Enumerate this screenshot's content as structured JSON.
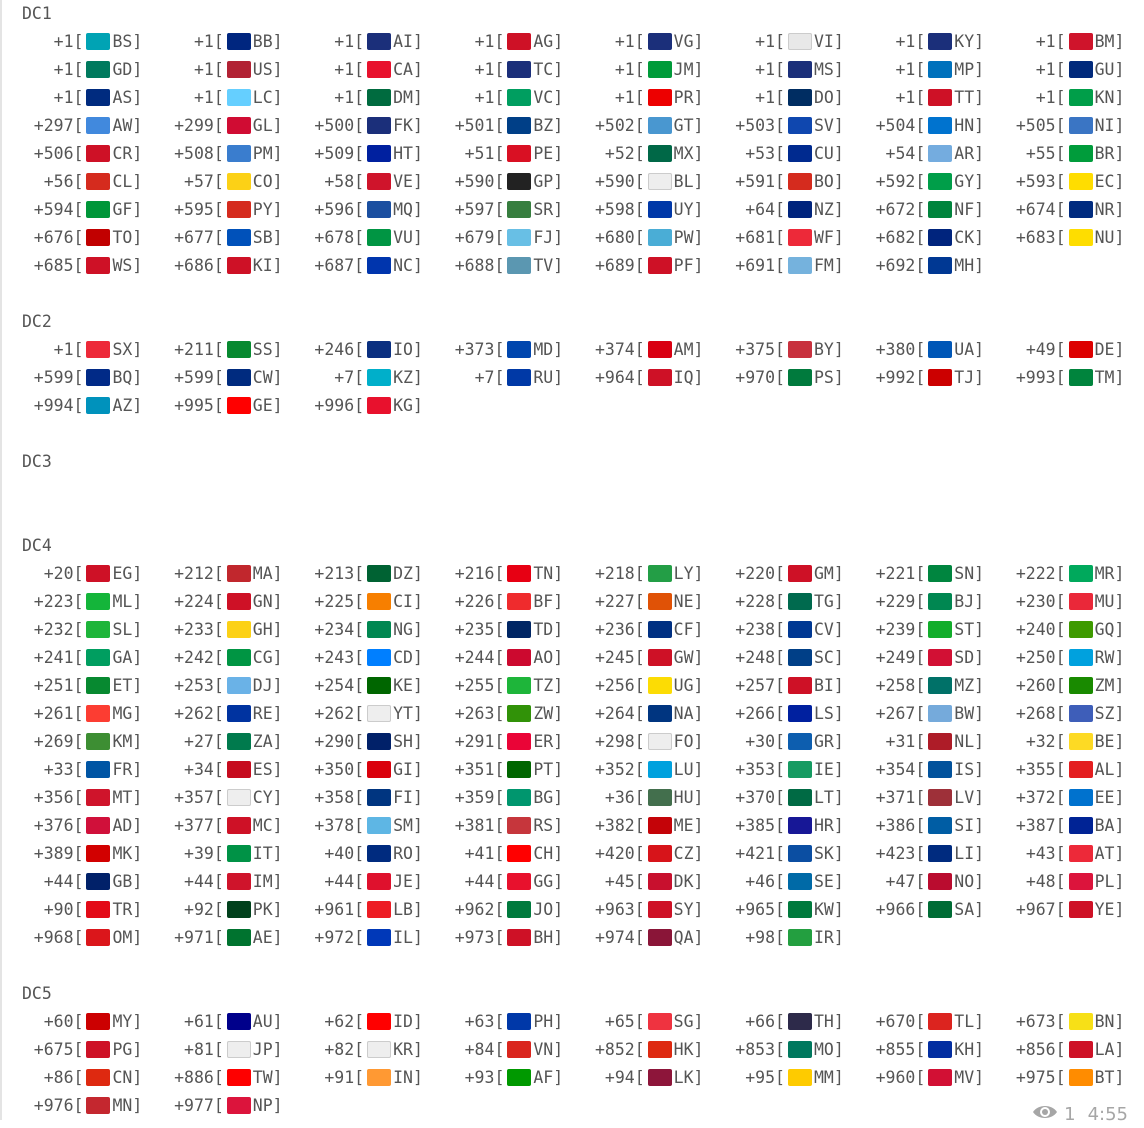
{
  "sections": [
    {
      "title": "DC1",
      "rows": [
        [
          [
            "+1",
            "BS"
          ],
          [
            "+1",
            "BB"
          ],
          [
            "+1",
            "AI"
          ],
          [
            "+1",
            "AG"
          ],
          [
            "+1",
            "VG"
          ],
          [
            "+1",
            "VI"
          ],
          [
            "+1",
            "KY"
          ],
          [
            "+1",
            "BM"
          ]
        ],
        [
          [
            "+1",
            "GD"
          ],
          [
            "+1",
            "US"
          ],
          [
            "+1",
            "CA"
          ],
          [
            "+1",
            "TC"
          ],
          [
            "+1",
            "JM"
          ],
          [
            "+1",
            "MS"
          ],
          [
            "+1",
            "MP"
          ],
          [
            "+1",
            "GU"
          ]
        ],
        [
          [
            "+1",
            "AS"
          ],
          [
            "+1",
            "LC"
          ],
          [
            "+1",
            "DM"
          ],
          [
            "+1",
            "VC"
          ],
          [
            "+1",
            "PR"
          ],
          [
            "+1",
            "DO"
          ],
          [
            "+1",
            "TT"
          ],
          [
            "+1",
            "KN"
          ]
        ],
        [
          [
            "+297",
            "AW"
          ],
          [
            "+299",
            "GL"
          ],
          [
            "+500",
            "FK"
          ],
          [
            "+501",
            "BZ"
          ],
          [
            "+502",
            "GT"
          ],
          [
            "+503",
            "SV"
          ],
          [
            "+504",
            "HN"
          ],
          [
            "+505",
            "NI"
          ]
        ],
        [
          [
            "+506",
            "CR"
          ],
          [
            "+508",
            "PM"
          ],
          [
            "+509",
            "HT"
          ],
          [
            "+51",
            "PE"
          ],
          [
            "+52",
            "MX"
          ],
          [
            "+53",
            "CU"
          ],
          [
            "+54",
            "AR"
          ],
          [
            "+55",
            "BR"
          ]
        ],
        [
          [
            "+56",
            "CL"
          ],
          [
            "+57",
            "CO"
          ],
          [
            "+58",
            "VE"
          ],
          [
            "+590",
            "GP"
          ],
          [
            "+590",
            "BL"
          ],
          [
            "+591",
            "BO"
          ],
          [
            "+592",
            "GY"
          ],
          [
            "+593",
            "EC"
          ]
        ],
        [
          [
            "+594",
            "GF"
          ],
          [
            "+595",
            "PY"
          ],
          [
            "+596",
            "MQ"
          ],
          [
            "+597",
            "SR"
          ],
          [
            "+598",
            "UY"
          ],
          [
            "+64",
            "NZ"
          ],
          [
            "+672",
            "NF"
          ],
          [
            "+674",
            "NR"
          ]
        ],
        [
          [
            "+676",
            "TO"
          ],
          [
            "+677",
            "SB"
          ],
          [
            "+678",
            "VU"
          ],
          [
            "+679",
            "FJ"
          ],
          [
            "+680",
            "PW"
          ],
          [
            "+681",
            "WF"
          ],
          [
            "+682",
            "CK"
          ],
          [
            "+683",
            "NU"
          ]
        ],
        [
          [
            "+685",
            "WS"
          ],
          [
            "+686",
            "KI"
          ],
          [
            "+687",
            "NC"
          ],
          [
            "+688",
            "TV"
          ],
          [
            "+689",
            "PF"
          ],
          [
            "+691",
            "FM"
          ],
          [
            "+692",
            "MH"
          ]
        ]
      ]
    },
    {
      "title": "DC2",
      "rows": [
        [
          [
            "+1",
            "SX"
          ],
          [
            "+211",
            "SS"
          ],
          [
            "+246",
            "IO"
          ],
          [
            "+373",
            "MD"
          ],
          [
            "+374",
            "AM"
          ],
          [
            "+375",
            "BY"
          ],
          [
            "+380",
            "UA"
          ],
          [
            "+49",
            "DE"
          ]
        ],
        [
          [
            "+599",
            "BQ"
          ],
          [
            "+599",
            "CW"
          ],
          [
            "+7",
            "KZ"
          ],
          [
            "+7",
            "RU"
          ],
          [
            "+964",
            "IQ"
          ],
          [
            "+970",
            "PS"
          ],
          [
            "+992",
            "TJ"
          ],
          [
            "+993",
            "TM"
          ]
        ],
        [
          [
            "+994",
            "AZ"
          ],
          [
            "+995",
            "GE"
          ],
          [
            "+996",
            "KG"
          ]
        ]
      ]
    },
    {
      "title": "DC3",
      "rows": [
        []
      ]
    },
    {
      "title": "DC4",
      "rows": [
        [
          [
            "+20",
            "EG"
          ],
          [
            "+212",
            "MA"
          ],
          [
            "+213",
            "DZ"
          ],
          [
            "+216",
            "TN"
          ],
          [
            "+218",
            "LY"
          ],
          [
            "+220",
            "GM"
          ],
          [
            "+221",
            "SN"
          ],
          [
            "+222",
            "MR"
          ]
        ],
        [
          [
            "+223",
            "ML"
          ],
          [
            "+224",
            "GN"
          ],
          [
            "+225",
            "CI"
          ],
          [
            "+226",
            "BF"
          ],
          [
            "+227",
            "NE"
          ],
          [
            "+228",
            "TG"
          ],
          [
            "+229",
            "BJ"
          ],
          [
            "+230",
            "MU"
          ]
        ],
        [
          [
            "+232",
            "SL"
          ],
          [
            "+233",
            "GH"
          ],
          [
            "+234",
            "NG"
          ],
          [
            "+235",
            "TD"
          ],
          [
            "+236",
            "CF"
          ],
          [
            "+238",
            "CV"
          ],
          [
            "+239",
            "ST"
          ],
          [
            "+240",
            "GQ"
          ]
        ],
        [
          [
            "+241",
            "GA"
          ],
          [
            "+242",
            "CG"
          ],
          [
            "+243",
            "CD"
          ],
          [
            "+244",
            "AO"
          ],
          [
            "+245",
            "GW"
          ],
          [
            "+248",
            "SC"
          ],
          [
            "+249",
            "SD"
          ],
          [
            "+250",
            "RW"
          ]
        ],
        [
          [
            "+251",
            "ET"
          ],
          [
            "+253",
            "DJ"
          ],
          [
            "+254",
            "KE"
          ],
          [
            "+255",
            "TZ"
          ],
          [
            "+256",
            "UG"
          ],
          [
            "+257",
            "BI"
          ],
          [
            "+258",
            "MZ"
          ],
          [
            "+260",
            "ZM"
          ]
        ],
        [
          [
            "+261",
            "MG"
          ],
          [
            "+262",
            "RE"
          ],
          [
            "+262",
            "YT"
          ],
          [
            "+263",
            "ZW"
          ],
          [
            "+264",
            "NA"
          ],
          [
            "+266",
            "LS"
          ],
          [
            "+267",
            "BW"
          ],
          [
            "+268",
            "SZ"
          ]
        ],
        [
          [
            "+269",
            "KM"
          ],
          [
            "+27",
            "ZA"
          ],
          [
            "+290",
            "SH"
          ],
          [
            "+291",
            "ER"
          ],
          [
            "+298",
            "FO"
          ],
          [
            "+30",
            "GR"
          ],
          [
            "+31",
            "NL"
          ],
          [
            "+32",
            "BE"
          ]
        ],
        [
          [
            "+33",
            "FR"
          ],
          [
            "+34",
            "ES"
          ],
          [
            "+350",
            "GI"
          ],
          [
            "+351",
            "PT"
          ],
          [
            "+352",
            "LU"
          ],
          [
            "+353",
            "IE"
          ],
          [
            "+354",
            "IS"
          ],
          [
            "+355",
            "AL"
          ]
        ],
        [
          [
            "+356",
            "MT"
          ],
          [
            "+357",
            "CY"
          ],
          [
            "+358",
            "FI"
          ],
          [
            "+359",
            "BG"
          ],
          [
            "+36",
            "HU"
          ],
          [
            "+370",
            "LT"
          ],
          [
            "+371",
            "LV"
          ],
          [
            "+372",
            "EE"
          ]
        ],
        [
          [
            "+376",
            "AD"
          ],
          [
            "+377",
            "MC"
          ],
          [
            "+378",
            "SM"
          ],
          [
            "+381",
            "RS"
          ],
          [
            "+382",
            "ME"
          ],
          [
            "+385",
            "HR"
          ],
          [
            "+386",
            "SI"
          ],
          [
            "+387",
            "BA"
          ]
        ],
        [
          [
            "+389",
            "MK"
          ],
          [
            "+39",
            "IT"
          ],
          [
            "+40",
            "RO"
          ],
          [
            "+41",
            "CH"
          ],
          [
            "+420",
            "CZ"
          ],
          [
            "+421",
            "SK"
          ],
          [
            "+423",
            "LI"
          ],
          [
            "+43",
            "AT"
          ]
        ],
        [
          [
            "+44",
            "GB"
          ],
          [
            "+44",
            "IM"
          ],
          [
            "+44",
            "JE"
          ],
          [
            "+44",
            "GG"
          ],
          [
            "+45",
            "DK"
          ],
          [
            "+46",
            "SE"
          ],
          [
            "+47",
            "NO"
          ],
          [
            "+48",
            "PL"
          ]
        ],
        [
          [
            "+90",
            "TR"
          ],
          [
            "+92",
            "PK"
          ],
          [
            "+961",
            "LB"
          ],
          [
            "+962",
            "JO"
          ],
          [
            "+963",
            "SY"
          ],
          [
            "+965",
            "KW"
          ],
          [
            "+966",
            "SA"
          ],
          [
            "+967",
            "YE"
          ]
        ],
        [
          [
            "+968",
            "OM"
          ],
          [
            "+971",
            "AE"
          ],
          [
            "+972",
            "IL"
          ],
          [
            "+973",
            "BH"
          ],
          [
            "+974",
            "QA"
          ],
          [
            "+98",
            "IR"
          ]
        ]
      ]
    },
    {
      "title": "DC5",
      "rows": [
        [
          [
            "+60",
            "MY"
          ],
          [
            "+61",
            "AU"
          ],
          [
            "+62",
            "ID"
          ],
          [
            "+63",
            "PH"
          ],
          [
            "+65",
            "SG"
          ],
          [
            "+66",
            "TH"
          ],
          [
            "+670",
            "TL"
          ],
          [
            "+673",
            "BN"
          ]
        ],
        [
          [
            "+675",
            "PG"
          ],
          [
            "+81",
            "JP"
          ],
          [
            "+82",
            "KR"
          ],
          [
            "+84",
            "VN"
          ],
          [
            "+852",
            "HK"
          ],
          [
            "+853",
            "MO"
          ],
          [
            "+855",
            "KH"
          ],
          [
            "+856",
            "LA"
          ]
        ],
        [
          [
            "+86",
            "CN"
          ],
          [
            "+886",
            "TW"
          ],
          [
            "+91",
            "IN"
          ],
          [
            "+93",
            "AF"
          ],
          [
            "+94",
            "LK"
          ],
          [
            "+95",
            "MM"
          ],
          [
            "+960",
            "MV"
          ],
          [
            "+975",
            "BT"
          ]
        ],
        [
          [
            "+976",
            "MN"
          ],
          [
            "+977",
            "NP"
          ]
        ]
      ]
    }
  ],
  "flag_colors": {
    "BS": "#00a3b4",
    "BB": "#00267f",
    "AI": "#1b2f7a",
    "AG": "#ce1126",
    "VG": "#1b2f7a",
    "VI": "#e8e8e8",
    "KY": "#1b2f7a",
    "BM": "#cf142b",
    "GD": "#007a5e",
    "US": "#b22234",
    "CA": "#e8112d",
    "TC": "#1b2f7a",
    "JM": "#009b3a",
    "MS": "#1b2f7a",
    "MP": "#0071bc",
    "GU": "#00297b",
    "AS": "#002b7f",
    "LC": "#65cfff",
    "DM": "#006b3f",
    "VC": "#009e60",
    "PR": "#ed0000",
    "DO": "#002d62",
    "TT": "#ce1126",
    "KN": "#009e49",
    "AW": "#4189dd",
    "GL": "#d00c33",
    "FK": "#1b2f7a",
    "BZ": "#003f87",
    "GT": "#4997d0",
    "SV": "#0f47af",
    "HN": "#0073cf",
    "NI": "#3a75c4",
    "CR": "#ce1126",
    "PM": "#3a7dce",
    "HT": "#00209f",
    "PE": "#d91023",
    "MX": "#006847",
    "CU": "#002a8f",
    "AR": "#74acdf",
    "BR": "#009c3b",
    "CL": "#d52b1e",
    "CO": "#fcd116",
    "VE": "#cf142b",
    "GP": "#222222",
    "BL": "#eeeeee",
    "BO": "#d52b1e",
    "GY": "#009e49",
    "EC": "#ffdd00",
    "GF": "#009639",
    "PY": "#d52b1e",
    "MQ": "#1b4fa0",
    "SR": "#377e3f",
    "UY": "#0038a8",
    "NZ": "#00247d",
    "NF": "#00843d",
    "NR": "#002b7f",
    "TO": "#c10000",
    "SB": "#0051ba",
    "VU": "#009543",
    "FJ": "#68bfe5",
    "PW": "#4aadd6",
    "WF": "#ed2939",
    "CK": "#00247d",
    "NU": "#fedd00",
    "WS": "#ce1126",
    "KI": "#ce1126",
    "NC": "#0035ad",
    "TV": "#5b97b1",
    "PF": "#ce1126",
    "FM": "#75b2dd",
    "MH": "#003893",
    "SX": "#ed2939",
    "SS": "#078930",
    "IO": "#0a2f80",
    "MD": "#0046ae",
    "AM": "#d90012",
    "BY": "#c8313e",
    "UA": "#0057b7",
    "DE": "#dd0000",
    "BQ": "#012a87",
    "CW": "#002b7f",
    "KZ": "#00afca",
    "RU": "#0039a6",
    "IQ": "#ce1126",
    "PS": "#007a3d",
    "TJ": "#cc0000",
    "TM": "#00843d",
    "AZ": "#0092bc",
    "GE": "#ff0000",
    "KG": "#e8112d",
    "EG": "#ce1126",
    "MA": "#c1272d",
    "DZ": "#006233",
    "TN": "#e70013",
    "LY": "#239e46",
    "GM": "#ce1126",
    "SN": "#00853f",
    "MR": "#00a95c",
    "ML": "#14b53a",
    "GN": "#ce1126",
    "CI": "#f77f00",
    "BF": "#ef2b2d",
    "NE": "#e05206",
    "TG": "#006a4e",
    "BJ": "#008751",
    "MU": "#ea2839",
    "SL": "#1eb53a",
    "GH": "#fcd116",
    "NG": "#008751",
    "TD": "#002664",
    "CF": "#003082",
    "CV": "#003893",
    "ST": "#12ad2b",
    "GQ": "#3e9a00",
    "GA": "#009e60",
    "CG": "#009543",
    "CD": "#007fff",
    "AO": "#cc092f",
    "GW": "#ce1126",
    "SC": "#003f87",
    "SD": "#d21034",
    "RW": "#00a1de",
    "ET": "#078930",
    "DJ": "#6ab2e7",
    "KE": "#006600",
    "TZ": "#1eb53a",
    "UG": "#fcdc04",
    "BI": "#ce1126",
    "MZ": "#007168",
    "ZM": "#198a00",
    "MG": "#fc3d32",
    "RE": "#0033a0",
    "YT": "#eeeeee",
    "ZW": "#319208",
    "NA": "#003580",
    "LS": "#00209f",
    "BW": "#75aadb",
    "SZ": "#3e5eb9",
    "KM": "#3d8e33",
    "ZA": "#007a4d",
    "SH": "#012169",
    "ER": "#ea0437",
    "FO": "#eeeeee",
    "GR": "#0d5eaf",
    "NL": "#ae1c28",
    "BE": "#fdda24",
    "FR": "#0055a4",
    "ES": "#c60b1e",
    "GI": "#da000c",
    "PT": "#006600",
    "LU": "#00a1de",
    "IE": "#169b62",
    "IS": "#02529c",
    "AL": "#e41e20",
    "MT": "#cf142b",
    "CY": "#eeeeee",
    "FI": "#003580",
    "BG": "#00966e",
    "HU": "#436f4d",
    "LT": "#006a44",
    "LV": "#9e3039",
    "EE": "#0072ce",
    "AD": "#d0103a",
    "MC": "#ce1126",
    "SM": "#5eb6e4",
    "RS": "#c6363c",
    "ME": "#c40308",
    "HR": "#171796",
    "SI": "#005da4",
    "BA": "#002395",
    "MK": "#d20000",
    "IT": "#009246",
    "RO": "#002b7f",
    "CH": "#ff0000",
    "CZ": "#d7141a",
    "SK": "#0b4ea2",
    "LI": "#002b7f",
    "AT": "#ed2939",
    "GB": "#012169",
    "IM": "#cf142b",
    "JE": "#df112d",
    "GG": "#e8112d",
    "DK": "#c8102e",
    "SE": "#006aa7",
    "NO": "#ba0c2f",
    "PL": "#dc143c",
    "TR": "#e30a17",
    "PK": "#01411c",
    "LB": "#ed1c24",
    "JO": "#007a3d",
    "SY": "#ce1126",
    "KW": "#007a3d",
    "SA": "#006c35",
    "YE": "#ce1126",
    "OM": "#db161b",
    "AE": "#00732f",
    "IL": "#0038b8",
    "BH": "#ce1126",
    "QA": "#8a1538",
    "IR": "#239f40",
    "MY": "#cc0001",
    "AU": "#00008b",
    "ID": "#ff0000",
    "PH": "#0038a8",
    "SG": "#ef3340",
    "TH": "#2d2a4a",
    "TL": "#dc241f",
    "BN": "#f7e017",
    "PG": "#ce1126",
    "JP": "#eeeeee",
    "KR": "#eeeeee",
    "VN": "#da251d",
    "HK": "#de2910",
    "MO": "#00785e",
    "KH": "#032ea1",
    "LA": "#ce1126",
    "CN": "#de2910",
    "TW": "#fe0000",
    "IN": "#ff9933",
    "AF": "#009900",
    "LK": "#8d153a",
    "MM": "#fecb00",
    "MV": "#d21034",
    "BT": "#ff8c00",
    "MN": "#c4272f",
    "NP": "#dc143c"
  },
  "footer": {
    "views_icon": "eye-icon",
    "views": "1",
    "time": "4:55"
  }
}
